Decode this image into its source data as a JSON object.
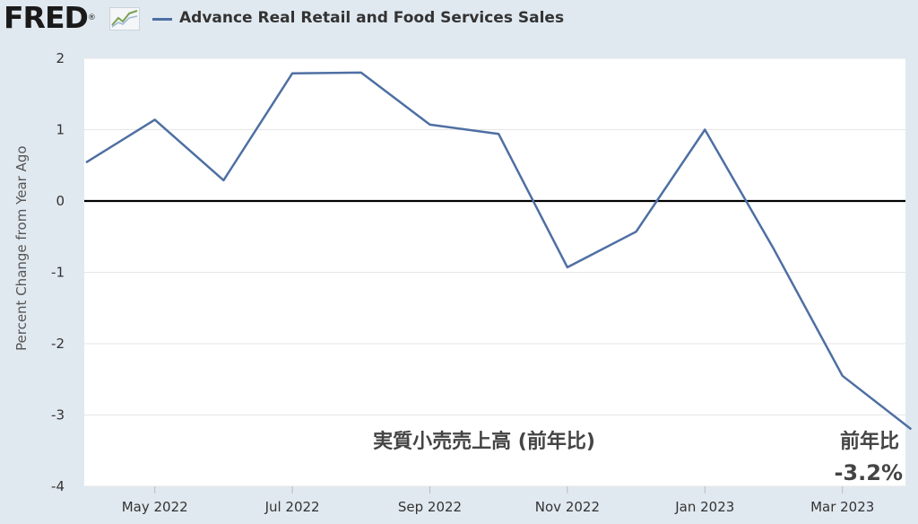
{
  "header": {
    "logo_text": "FRED",
    "logo_suffix": "®",
    "series_title": "Advance Real Retail and Food Services Sales"
  },
  "colors": {
    "background": "#e1e9f0",
    "plot_background": "#ffffff",
    "series_line": "#4e6fa3",
    "zero_line": "#000000",
    "grid": "#e6e6e6",
    "text": "#333333"
  },
  "annotations": {
    "center": "実質小売売上高 (前年比)",
    "right_label": "前年比",
    "right_value": "-3.2%"
  },
  "chart_data": {
    "type": "line",
    "title": "Advance Real Retail and Food Services Sales",
    "ylabel": "Percent Change from Year Ago",
    "xlabel": "",
    "ylim": [
      -4,
      2
    ],
    "yticks": [
      2,
      1,
      0,
      -1,
      -2,
      -3,
      -4
    ],
    "xticks": [
      "May 2022",
      "Jul 2022",
      "Sep 2022",
      "Nov 2022",
      "Jan 2023",
      "Mar 2023"
    ],
    "grid": true,
    "legend": "top-left",
    "series": [
      {
        "name": "Advance Real Retail and Food Services Sales",
        "x": [
          "2022-04",
          "2022-05",
          "2022-06",
          "2022-07",
          "2022-08",
          "2022-09",
          "2022-10",
          "2022-11",
          "2022-12",
          "2023-01",
          "2023-02",
          "2023-03",
          "2023-04"
        ],
        "values": [
          0.54,
          1.14,
          0.29,
          1.79,
          1.8,
          1.07,
          0.94,
          -0.93,
          -0.43,
          1.0,
          -0.67,
          -2.45,
          -3.2
        ]
      }
    ]
  }
}
